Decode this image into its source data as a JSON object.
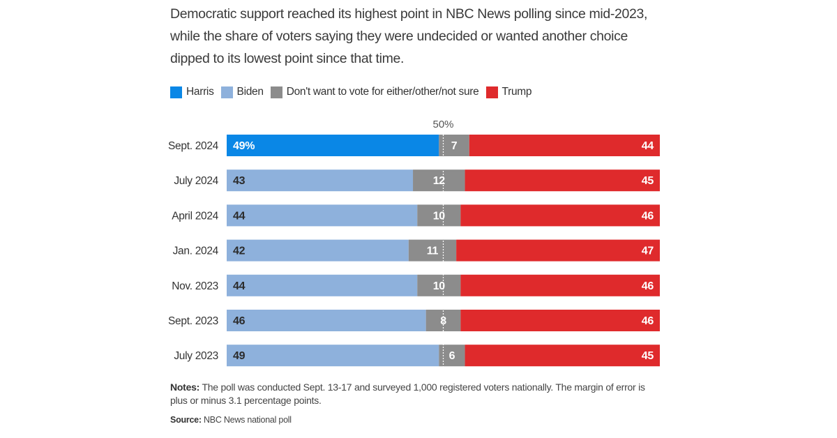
{
  "subtitle": "Democratic support reached its highest point in NBC News polling since mid-2023, while the share of voters saying they were undecided or wanted another choice dipped to its lowest point since that time.",
  "legend": [
    {
      "label": "Harris",
      "color": "#0a87e6"
    },
    {
      "label": "Biden",
      "color": "#8eb1dc"
    },
    {
      "label": "Don't want to vote for either/other/not sure",
      "color": "#8c8c8c"
    },
    {
      "label": "Trump",
      "color": "#df2a2c"
    }
  ],
  "notes": {
    "label": "Notes:",
    "text": " The poll was conducted Sept. 13-17 and surveyed 1,000 registered voters nationally. The margin of error is plus or minus 3.1 percentage points."
  },
  "source": {
    "label": "Source:",
    "text": " NBC News national poll"
  },
  "chart_data": {
    "type": "bar",
    "orientation": "horizontal-stacked",
    "reference_line_label": "50%",
    "reference_value": 50,
    "xlim": [
      0,
      100
    ],
    "first_value_suffix": "%",
    "colors": {
      "Harris": "#0a87e6",
      "Biden": "#8eb1dc",
      "Other": "#8c8c8c",
      "Trump": "#df2a2c"
    },
    "categories": [
      "Sept. 2024",
      "July 2024",
      "April 2024",
      "Jan. 2024",
      "Nov. 2023",
      "Sept. 2023",
      "July 2023"
    ],
    "democrat_candidate": [
      "Harris",
      "Biden",
      "Biden",
      "Biden",
      "Biden",
      "Biden",
      "Biden"
    ],
    "democrat": [
      49,
      43,
      44,
      42,
      44,
      46,
      49
    ],
    "other": [
      7,
      12,
      10,
      11,
      10,
      8,
      6
    ],
    "trump": [
      44,
      45,
      46,
      47,
      46,
      46,
      45
    ]
  }
}
